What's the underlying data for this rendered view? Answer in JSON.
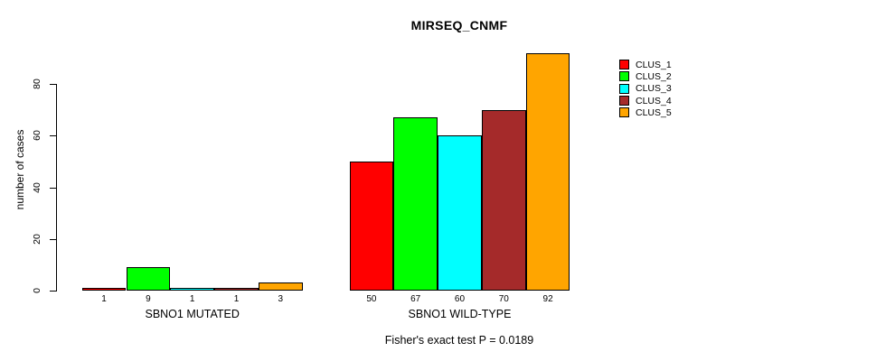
{
  "chart_data": {
    "type": "bar",
    "title": "MIRSEQ_CNMF",
    "ylabel": "number of cases",
    "xlabel": "",
    "ylim": [
      0,
      92
    ],
    "yticks": [
      0,
      20,
      40,
      60,
      80
    ],
    "grid": false,
    "legend_position": "right",
    "bar_value_labels_shown": true,
    "categories": [
      "SBNO1 MUTATED",
      "SBNO1 WILD-TYPE"
    ],
    "series": [
      {
        "name": "CLUS_1",
        "color": "#FF0000",
        "values": [
          1,
          50
        ]
      },
      {
        "name": "CLUS_2",
        "color": "#00FF00",
        "values": [
          9,
          67
        ]
      },
      {
        "name": "CLUS_3",
        "color": "#00FFFF",
        "values": [
          1,
          60
        ]
      },
      {
        "name": "CLUS_4",
        "color": "#A52A2A",
        "values": [
          1,
          70
        ]
      },
      {
        "name": "CLUS_5",
        "color": "#FFA500",
        "values": [
          3,
          92
        ]
      }
    ],
    "caption": "Fisher's exact test P = 0.0189"
  }
}
